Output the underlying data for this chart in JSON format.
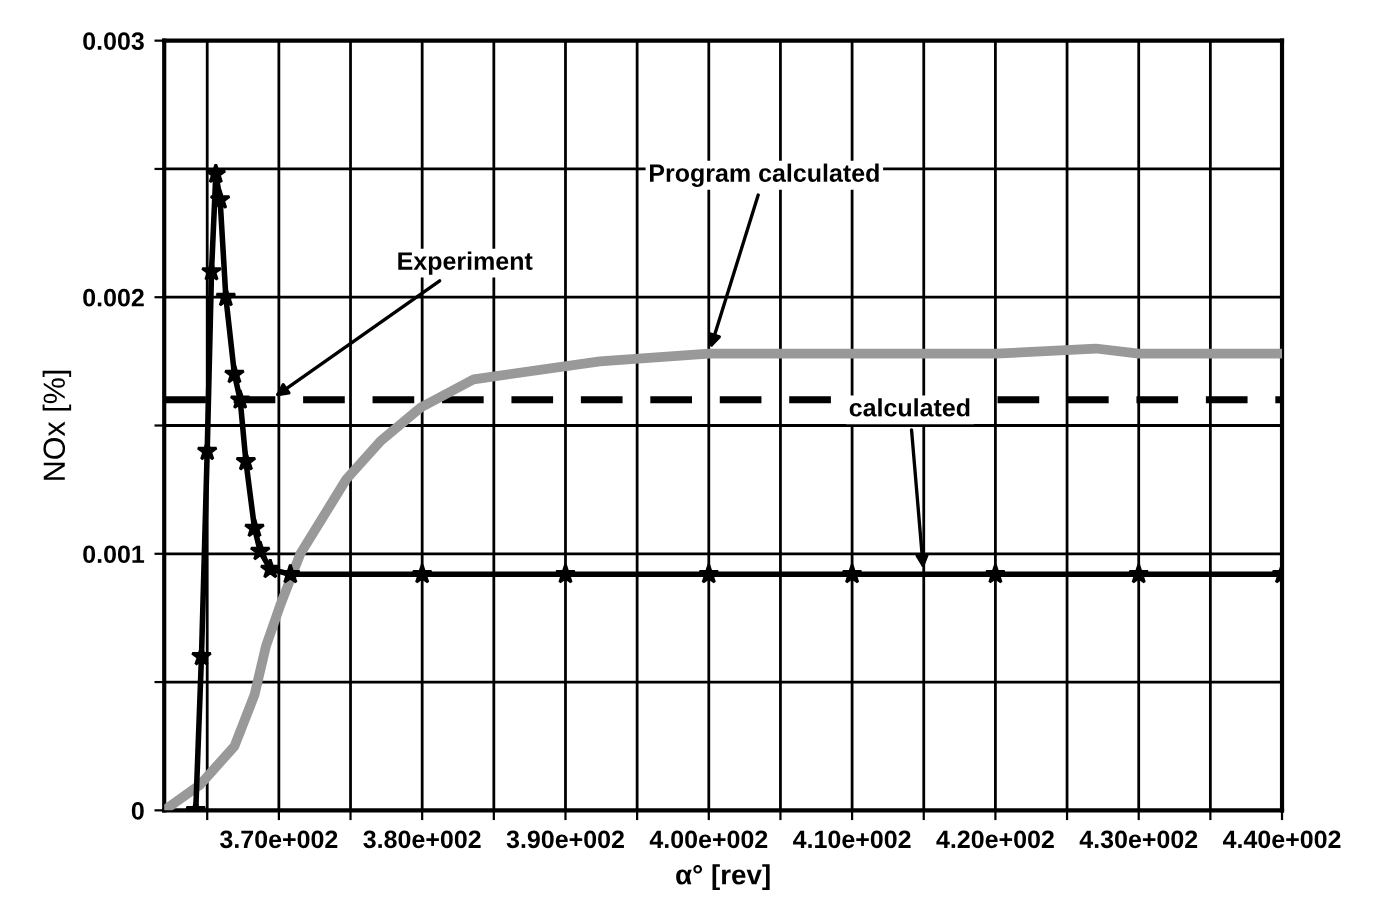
{
  "chart_data": {
    "type": "line",
    "xlabel": "α° [rev]",
    "ylabel": "NOx [%]",
    "xlim": [
      362,
      440
    ],
    "ylim": [
      0,
      0.003
    ],
    "xticks": [
      {
        "value": 365,
        "label": null
      },
      {
        "value": 370,
        "label": "3.70e+002"
      },
      {
        "value": 375,
        "label": null
      },
      {
        "value": 380,
        "label": "3.80e+002"
      },
      {
        "value": 385,
        "label": null
      },
      {
        "value": 390,
        "label": "3.90e+002"
      },
      {
        "value": 395,
        "label": null
      },
      {
        "value": 400,
        "label": "4.00e+002"
      },
      {
        "value": 405,
        "label": null
      },
      {
        "value": 410,
        "label": "4.10e+002"
      },
      {
        "value": 415,
        "label": null
      },
      {
        "value": 420,
        "label": "4.20e+002"
      },
      {
        "value": 425,
        "label": null
      },
      {
        "value": 430,
        "label": "4.30e+002"
      },
      {
        "value": 435,
        "label": null
      },
      {
        "value": 440,
        "label": "4.40e+002"
      }
    ],
    "yticks": [
      0,
      {
        "value": 0.0005,
        "label": null
      },
      0.001,
      {
        "value": 0.0015,
        "label": null
      },
      0.002,
      {
        "value": 0.0025,
        "label": null
      },
      0.003
    ],
    "grid": true,
    "series": [
      {
        "color": "#000000",
        "marker": "star",
        "x": [
          364.2,
          364.6,
          365.0,
          365.3,
          365.6,
          365.9,
          366.3,
          366.9,
          367.3,
          367.7,
          368.3,
          368.7,
          369.4,
          370.8,
          380,
          390,
          400,
          410,
          420,
          430,
          440
        ],
        "values": [
          0,
          0.0006,
          0.0014,
          0.0021,
          0.00248,
          0.00238,
          0.002,
          0.0017,
          0.0016,
          0.00136,
          0.0011,
          0.00101,
          0.00094,
          0.00092,
          0.00092,
          0.00092,
          0.00092,
          0.00092,
          0.00092,
          0.00092,
          0.00092
        ]
      },
      {
        "color": "#999999",
        "marker": "none",
        "x": [
          362,
          364.5,
          366.9,
          368.3,
          369.1,
          370.1,
          371.5,
          374.7,
          377.1,
          379.9,
          383.6,
          392.4,
          400,
          410,
          420,
          427,
          430,
          440
        ],
        "values": [
          0,
          0.0001,
          0.00025,
          0.00045,
          0.00064,
          0.0008,
          0.001,
          0.00129,
          0.00144,
          0.00157,
          0.00168,
          0.00175,
          0.00178,
          0.00178,
          0.00178,
          0.0018,
          0.00178,
          0.00178
        ]
      }
    ],
    "ref_lines": [
      {
        "axis": "y",
        "value": 0.0016,
        "color": "#000000",
        "line_style": "dashed"
      }
    ],
    "annotations": [
      {
        "text": "Experiment",
        "x": 369.4,
        "y": 0.0016
      },
      {
        "text": "Program calculated",
        "x": 400,
        "y": 0.00178
      },
      {
        "text": "calculated",
        "x": 415,
        "y": 0.00092
      }
    ]
  }
}
